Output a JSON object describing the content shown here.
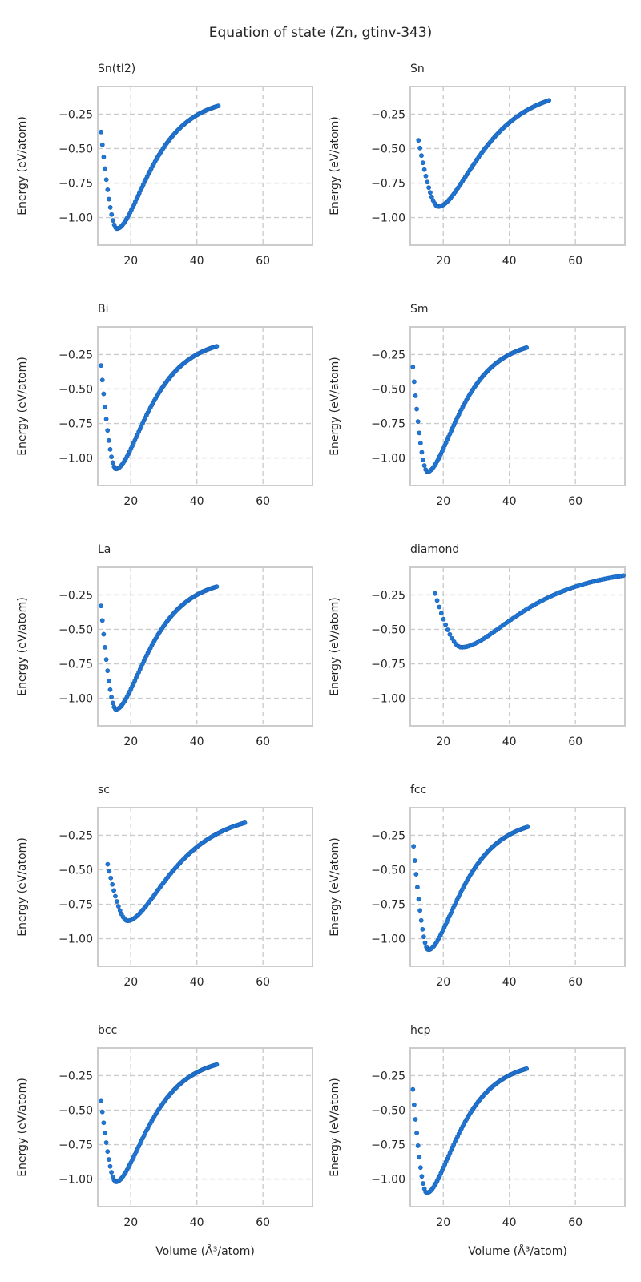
{
  "chart_data": {
    "type": "scatter",
    "title": "Equation of state (Zn, gtinv-343)",
    "xlabel": "Volume (Å³/atom)",
    "ylabel": "Energy (eV/atom)",
    "xlim": [
      10,
      75
    ],
    "ylim": [
      -1.2,
      -0.05
    ],
    "xticks": [
      20,
      40,
      60
    ],
    "yticks": [
      -0.25,
      -0.5,
      -0.75,
      -1.0
    ],
    "ytick_labels": [
      "−0.25",
      "−0.50",
      "−0.75",
      "−1.00"
    ],
    "grid": true,
    "marker_color": "#1f77d8",
    "panels": [
      {
        "name": "Sn(tI2)",
        "v0": 15.8,
        "e0": -1.08,
        "vmin": 11.0,
        "vmax": 46.5,
        "e_at_vmin": -0.38,
        "e_at_vmax": -0.19,
        "k_left": 1.35,
        "k_right": 1.7
      },
      {
        "name": "Sn",
        "v0": 18.5,
        "e0": -0.92,
        "vmin": 12.5,
        "vmax": 52.0,
        "e_at_vmin": -0.44,
        "e_at_vmax": -0.15,
        "k_left": 1.3,
        "k_right": 1.55
      },
      {
        "name": "Bi",
        "v0": 15.5,
        "e0": -1.08,
        "vmin": 11.0,
        "vmax": 46.0,
        "e_at_vmin": -0.33,
        "e_at_vmax": -0.19,
        "k_left": 1.35,
        "k_right": 1.7
      },
      {
        "name": "Sm",
        "v0": 15.2,
        "e0": -1.1,
        "vmin": 10.8,
        "vmax": 45.2,
        "e_at_vmin": -0.34,
        "e_at_vmax": -0.2,
        "k_left": 1.35,
        "k_right": 1.7
      },
      {
        "name": "La",
        "v0": 15.5,
        "e0": -1.08,
        "vmin": 11.0,
        "vmax": 46.0,
        "e_at_vmin": -0.33,
        "e_at_vmax": -0.19,
        "k_left": 1.35,
        "k_right": 1.7
      },
      {
        "name": "diamond",
        "v0": 25.5,
        "e0": -0.63,
        "vmin": 17.5,
        "vmax": 74.5,
        "e_at_vmin": -0.24,
        "e_at_vmax": -0.11,
        "k_left": 1.3,
        "k_right": 1.5
      },
      {
        "name": "sc",
        "v0": 19.0,
        "e0": -0.87,
        "vmin": 13.0,
        "vmax": 54.5,
        "e_at_vmin": -0.46,
        "e_at_vmax": -0.16,
        "k_left": 1.3,
        "k_right": 1.55
      },
      {
        "name": "fcc",
        "v0": 15.5,
        "e0": -1.08,
        "vmin": 11.0,
        "vmax": 45.5,
        "e_at_vmin": -0.33,
        "e_at_vmax": -0.19,
        "k_left": 1.35,
        "k_right": 1.7
      },
      {
        "name": "bcc",
        "v0": 15.5,
        "e0": -1.02,
        "vmin": 11.0,
        "vmax": 46.0,
        "e_at_vmin": -0.43,
        "e_at_vmax": -0.17,
        "k_left": 1.35,
        "k_right": 1.7
      },
      {
        "name": "hcp",
        "v0": 15.0,
        "e0": -1.1,
        "vmin": 10.8,
        "vmax": 45.2,
        "e_at_vmin": -0.35,
        "e_at_vmax": -0.2,
        "k_left": 1.35,
        "k_right": 1.7
      }
    ]
  }
}
